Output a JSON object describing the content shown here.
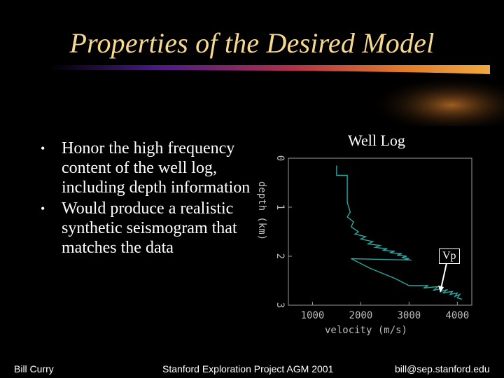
{
  "slide": {
    "title": "Properties of the Desired Model",
    "accent_colors": {
      "title": "#f6d98e",
      "swoosh_start": "#6a1fb0",
      "swoosh_mid": "#c0392b",
      "swoosh_end": "#e8a030"
    },
    "bullets": [
      {
        "text": "Honor the high frequency content of the well log, including depth information"
      },
      {
        "text": "Would produce a realistic synthetic seismogram that matches the data"
      }
    ],
    "bullet_glyph": "•",
    "well_log_caption": "Well Log",
    "vp_label": "Vp",
    "footer": {
      "author": "Bill Curry",
      "event": "Stanford Exploration Project AGM 2001",
      "email": "bill@sep.stanford.edu"
    }
  },
  "chart_data": {
    "type": "line",
    "xlabel": "velocity (m/s)",
    "ylabel": "depth (km)",
    "xlim": [
      500,
      4300
    ],
    "ylim": [
      0,
      3
    ],
    "y_inverted": true,
    "x_ticks": [
      "1000",
      "2000",
      "3000",
      "4000"
    ],
    "y_ticks": [
      "0",
      "1",
      "2",
      "3"
    ],
    "series_color": "#2aa7a0",
    "series": [
      {
        "x": [
          1500,
          1500,
          1720,
          1720,
          1750,
          1780,
          1720,
          1850,
          1800,
          1950,
          1880,
          2100,
          2000,
          2250,
          2150,
          2400,
          2300,
          2550,
          2450,
          2700,
          2600,
          2850,
          2750,
          2950,
          2850,
          3000,
          2900,
          3050,
          1800,
          2200,
          2700,
          3000,
          3400,
          3300,
          3600,
          3500,
          3700,
          3650,
          3800,
          3700,
          3900,
          3850,
          4000,
          3950,
          4050,
          4000,
          4100
        ],
        "y": [
          0.15,
          0.35,
          0.35,
          0.9,
          1.0,
          1.1,
          1.2,
          1.3,
          1.4,
          1.5,
          1.55,
          1.6,
          1.65,
          1.7,
          1.75,
          1.78,
          1.82,
          1.85,
          1.88,
          1.9,
          1.93,
          1.95,
          1.98,
          2.0,
          2.03,
          2.05,
          2.07,
          2.08,
          2.05,
          2.25,
          2.45,
          2.6,
          2.6,
          2.65,
          2.62,
          2.7,
          2.65,
          2.72,
          2.68,
          2.75,
          2.72,
          2.78,
          2.75,
          2.82,
          2.78,
          2.85,
          2.88
        ]
      }
    ]
  }
}
